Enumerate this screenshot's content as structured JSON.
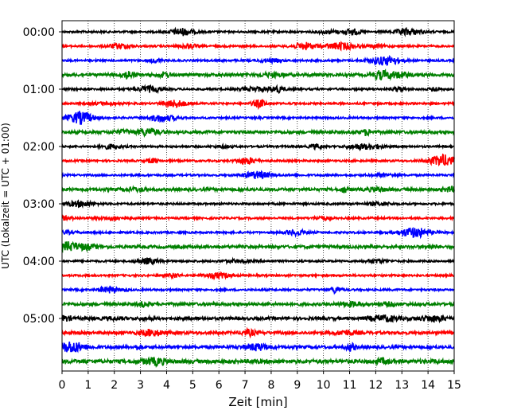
{
  "chart_data": {
    "type": "line",
    "subtype": "helicorder",
    "xlabel": "Zeit  [min]",
    "ylabel": "UTC (Lokalzeit = UTC + 01:00)",
    "xlim": [
      0,
      15
    ],
    "x_ticks": [
      "0",
      "1",
      "2",
      "3",
      "4",
      "5",
      "6",
      "7",
      "8",
      "9",
      "10",
      "11",
      "12",
      "13",
      "14",
      "15"
    ],
    "y_tick_labels": [
      "00:00",
      "01:00",
      "02:00",
      "03:00",
      "04:00",
      "05:00"
    ],
    "trace_interval_min": 15,
    "trace_count": 24,
    "trace_colors": [
      "#000000",
      "#ff0000",
      "#0000ff",
      "#008000"
    ],
    "grid": "vertical dotted at each minute",
    "series": [
      {
        "start": "00:00",
        "color": "#000000"
      },
      {
        "start": "00:15",
        "color": "#ff0000"
      },
      {
        "start": "00:30",
        "color": "#0000ff"
      },
      {
        "start": "00:45",
        "color": "#008000"
      },
      {
        "start": "01:00",
        "color": "#000000"
      },
      {
        "start": "01:15",
        "color": "#ff0000"
      },
      {
        "start": "01:30",
        "color": "#0000ff"
      },
      {
        "start": "01:45",
        "color": "#008000"
      },
      {
        "start": "02:00",
        "color": "#000000"
      },
      {
        "start": "02:15",
        "color": "#ff0000"
      },
      {
        "start": "02:30",
        "color": "#0000ff"
      },
      {
        "start": "02:45",
        "color": "#008000"
      },
      {
        "start": "03:00",
        "color": "#000000"
      },
      {
        "start": "03:15",
        "color": "#ff0000"
      },
      {
        "start": "03:30",
        "color": "#0000ff"
      },
      {
        "start": "03:45",
        "color": "#008000"
      },
      {
        "start": "04:00",
        "color": "#000000"
      },
      {
        "start": "04:15",
        "color": "#ff0000"
      },
      {
        "start": "04:30",
        "color": "#0000ff"
      },
      {
        "start": "04:45",
        "color": "#008000"
      },
      {
        "start": "05:00",
        "color": "#000000"
      },
      {
        "start": "05:15",
        "color": "#ff0000"
      },
      {
        "start": "05:30",
        "color": "#0000ff"
      },
      {
        "start": "05:45",
        "color": "#008000"
      }
    ]
  }
}
